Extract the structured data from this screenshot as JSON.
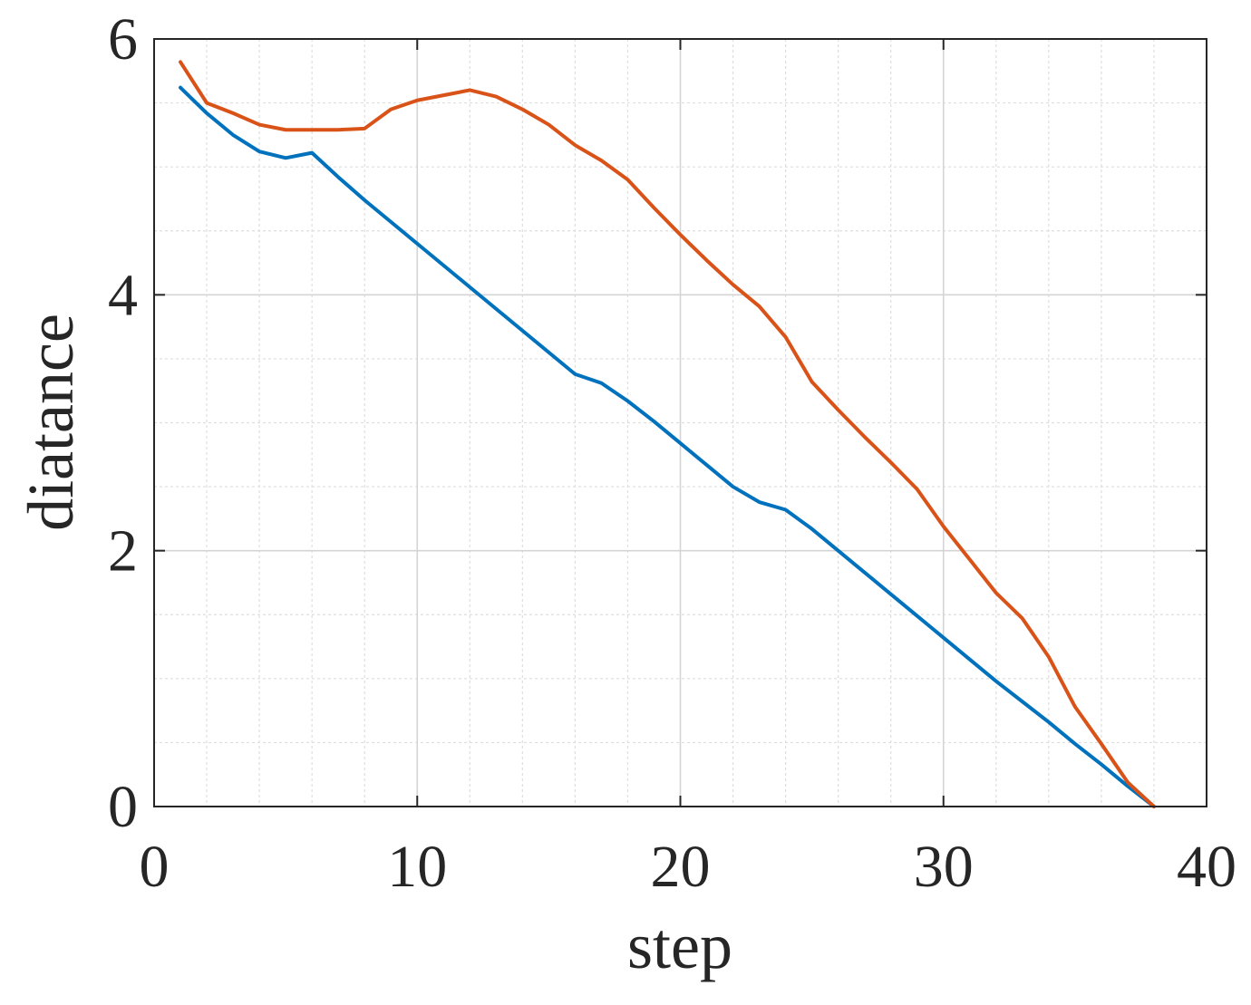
{
  "chart_data": {
    "type": "line",
    "xlabel": "step",
    "ylabel": "diatance",
    "xlim": [
      0,
      40
    ],
    "ylim": [
      0,
      6
    ],
    "xticks": [
      0,
      10,
      20,
      30,
      40
    ],
    "yticks": [
      0,
      2,
      4,
      6
    ],
    "x_minor_step": 2,
    "y_minor_step": 0.5,
    "grid": true,
    "minor_grid": true,
    "series": [
      {
        "color": "#0072BD",
        "x": [
          1,
          2,
          3,
          4,
          5,
          6,
          7,
          8,
          9,
          10,
          11,
          12,
          13,
          14,
          15,
          16,
          17,
          18,
          19,
          20,
          21,
          22,
          23,
          24,
          25,
          26,
          27,
          28,
          29,
          30,
          31,
          32,
          33,
          34,
          35,
          36,
          37,
          38
        ],
        "values": [
          5.62,
          5.42,
          5.25,
          5.12,
          5.07,
          5.11,
          4.92,
          4.74,
          4.57,
          4.4,
          4.23,
          4.06,
          3.89,
          3.72,
          3.55,
          3.38,
          3.31,
          3.17,
          3.01,
          2.84,
          2.67,
          2.5,
          2.38,
          2.32,
          2.17,
          2.0,
          1.83,
          1.66,
          1.49,
          1.32,
          1.15,
          0.98,
          0.82,
          0.66,
          0.49,
          0.33,
          0.16,
          0.0
        ]
      },
      {
        "color": "#D95319",
        "x": [
          1,
          2,
          3,
          4,
          5,
          6,
          7,
          8,
          9,
          10,
          11,
          12,
          13,
          14,
          15,
          16,
          17,
          18,
          19,
          20,
          21,
          22,
          23,
          24,
          25,
          26,
          27,
          28,
          29,
          30,
          31,
          32,
          33,
          34,
          35,
          36,
          37,
          38
        ],
        "values": [
          5.82,
          5.5,
          5.42,
          5.33,
          5.29,
          5.29,
          5.29,
          5.3,
          5.45,
          5.52,
          5.56,
          5.6,
          5.55,
          5.45,
          5.33,
          5.17,
          5.05,
          4.9,
          4.68,
          4.47,
          4.27,
          4.08,
          3.91,
          3.67,
          3.32,
          3.1,
          2.89,
          2.69,
          2.48,
          2.19,
          1.93,
          1.67,
          1.47,
          1.17,
          0.78,
          0.49,
          0.19,
          0.0
        ]
      }
    ]
  }
}
